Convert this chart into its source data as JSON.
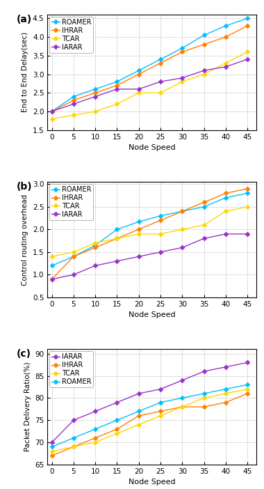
{
  "x": [
    0,
    5,
    10,
    15,
    20,
    25,
    30,
    35,
    40,
    45
  ],
  "plot_a": {
    "ylabel": "End to End Delay(sec)",
    "xlabel": "Node Speed",
    "ylim": [
      1.5,
      4.6
    ],
    "yticks": [
      1.5,
      2.0,
      2.5,
      3.0,
      3.5,
      4.0,
      4.5
    ],
    "panel_label": "(a)",
    "series": {
      "ROAMER": {
        "color": "#00BFFF",
        "values": [
          2.0,
          2.4,
          2.6,
          2.8,
          3.1,
          3.4,
          3.7,
          4.05,
          4.3,
          4.5
        ]
      },
      "IHRAR": {
        "color": "#FF7F00",
        "values": [
          2.0,
          2.3,
          2.5,
          2.7,
          3.0,
          3.3,
          3.6,
          3.8,
          4.0,
          4.3
        ]
      },
      "TCAR": {
        "color": "#FFD700",
        "values": [
          1.8,
          1.9,
          2.0,
          2.2,
          2.5,
          2.5,
          2.8,
          3.0,
          3.3,
          3.6
        ]
      },
      "IARAR": {
        "color": "#9932CC",
        "values": [
          2.0,
          2.2,
          2.4,
          2.6,
          2.6,
          2.8,
          2.9,
          3.1,
          3.2,
          3.4
        ]
      }
    },
    "legend_order": [
      "ROAMER",
      "IHRAR",
      "TCAR",
      "IARAR"
    ]
  },
  "plot_b": {
    "ylabel": "Control routing overhead",
    "xlabel": "Node Speed",
    "ylim": [
      0.5,
      3.05
    ],
    "yticks": [
      0.5,
      1.0,
      1.5,
      2.0,
      2.5,
      3.0
    ],
    "panel_label": "(b)",
    "series": {
      "ROAMER": {
        "color": "#00BFFF",
        "values": [
          1.2,
          1.4,
          1.65,
          2.0,
          2.17,
          2.3,
          2.4,
          2.5,
          2.7,
          2.8
        ]
      },
      "IHRAR": {
        "color": "#FF7F00",
        "values": [
          0.9,
          1.4,
          1.6,
          1.8,
          2.0,
          2.2,
          2.4,
          2.6,
          2.8,
          2.9
        ]
      },
      "TCAR": {
        "color": "#FFD700",
        "values": [
          1.4,
          1.5,
          1.7,
          1.8,
          1.9,
          1.9,
          2.0,
          2.1,
          2.4,
          2.5
        ]
      },
      "IARAR": {
        "color": "#9932CC",
        "values": [
          0.9,
          1.0,
          1.2,
          1.3,
          1.4,
          1.5,
          1.6,
          1.8,
          1.9,
          1.9
        ]
      }
    },
    "legend_order": [
      "ROAMER",
      "IHRAR",
      "TCAR",
      "IARAR"
    ]
  },
  "plot_c": {
    "ylabel": "Packet Delivery Ratio(%)",
    "xlabel": "Node Speed",
    "ylim": [
      65,
      91
    ],
    "yticks": [
      65,
      70,
      75,
      80,
      85,
      90
    ],
    "panel_label": "(c)",
    "series": {
      "IARAR": {
        "color": "#9932CC",
        "values": [
          70.0,
          75.0,
          77.0,
          79.0,
          81.0,
          82.0,
          84.0,
          86.0,
          87.0,
          88.0
        ]
      },
      "IHRAR": {
        "color": "#FF7F00",
        "values": [
          67.0,
          69.0,
          71.0,
          73.0,
          76.0,
          77.0,
          78.0,
          78.0,
          79.0,
          81.0
        ]
      },
      "TCAR": {
        "color": "#FFD700",
        "values": [
          68.0,
          69.0,
          70.0,
          72.0,
          74.0,
          76.0,
          78.0,
          80.0,
          81.0,
          82.0
        ]
      },
      "ROAMER": {
        "color": "#00BFFF",
        "values": [
          69.0,
          71.0,
          73.0,
          75.0,
          77.0,
          79.0,
          80.0,
          81.0,
          82.0,
          83.0
        ]
      }
    },
    "legend_order": [
      "IARAR",
      "IHRAR",
      "TCAR",
      "ROAMER"
    ]
  }
}
